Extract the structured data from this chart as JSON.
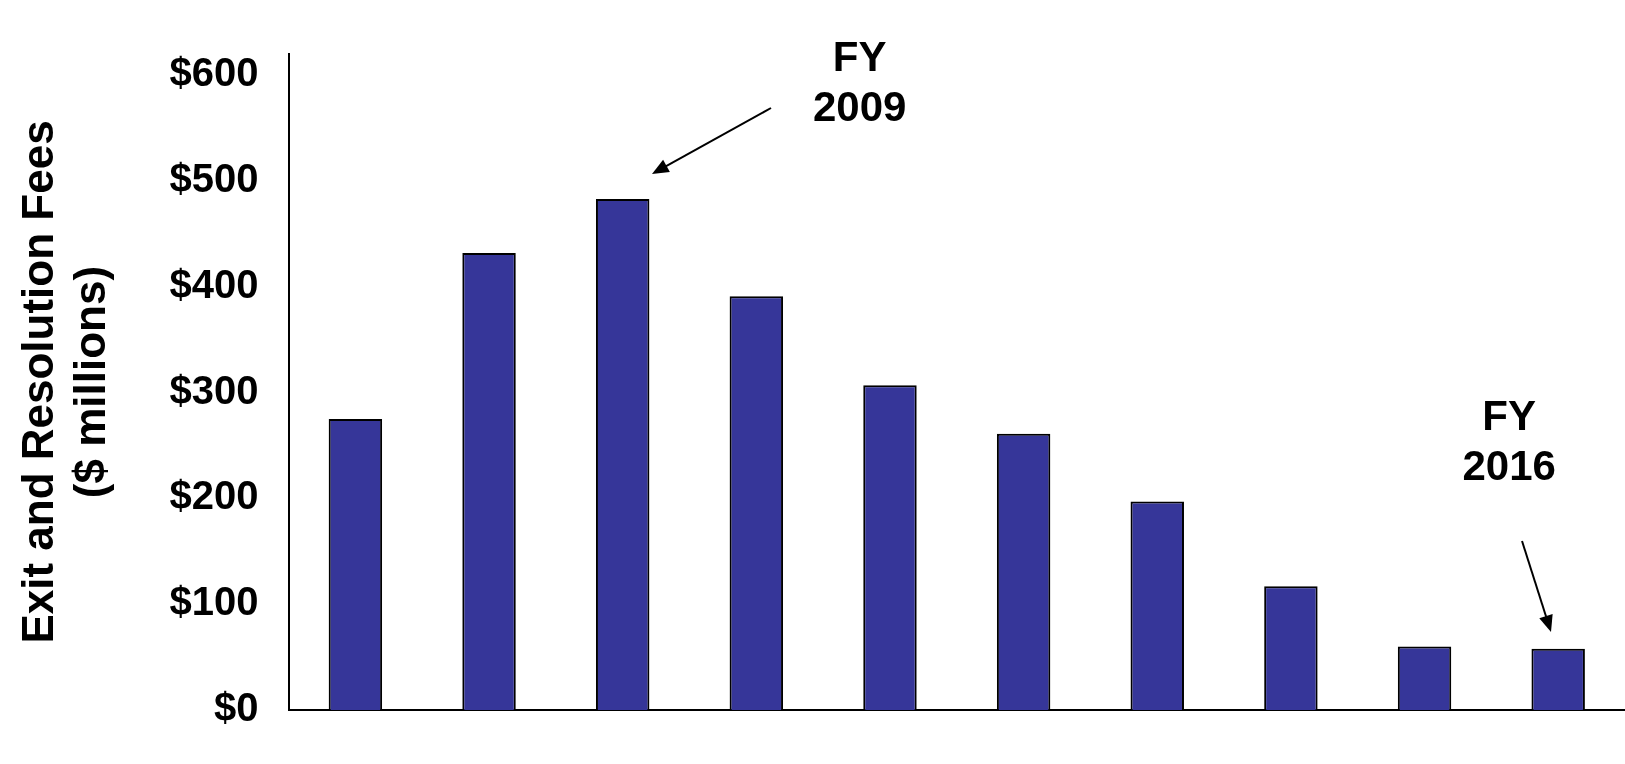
{
  "chart_data": {
    "type": "bar",
    "ylabel": "Exit and Resolution Fees\n($ millions)",
    "categories": [
      null,
      null,
      null,
      null,
      null,
      null,
      null,
      null,
      null,
      null
    ],
    "values": [
      275,
      432,
      483,
      391,
      307,
      261,
      197,
      117,
      60,
      58
    ],
    "color": "#363699",
    "ylim": [
      0,
      620
    ],
    "yticks": [
      {
        "value": 0,
        "label": "$0"
      },
      {
        "value": 100,
        "label": "$100"
      },
      {
        "value": 200,
        "label": "$200"
      },
      {
        "value": 300,
        "label": "$300"
      },
      {
        "value": 400,
        "label": "$400"
      },
      {
        "value": 500,
        "label": "$500"
      },
      {
        "value": 600,
        "label": "$600"
      }
    ],
    "grid": false,
    "annotations": [
      "FY\n2009",
      "FY\n2016"
    ]
  }
}
